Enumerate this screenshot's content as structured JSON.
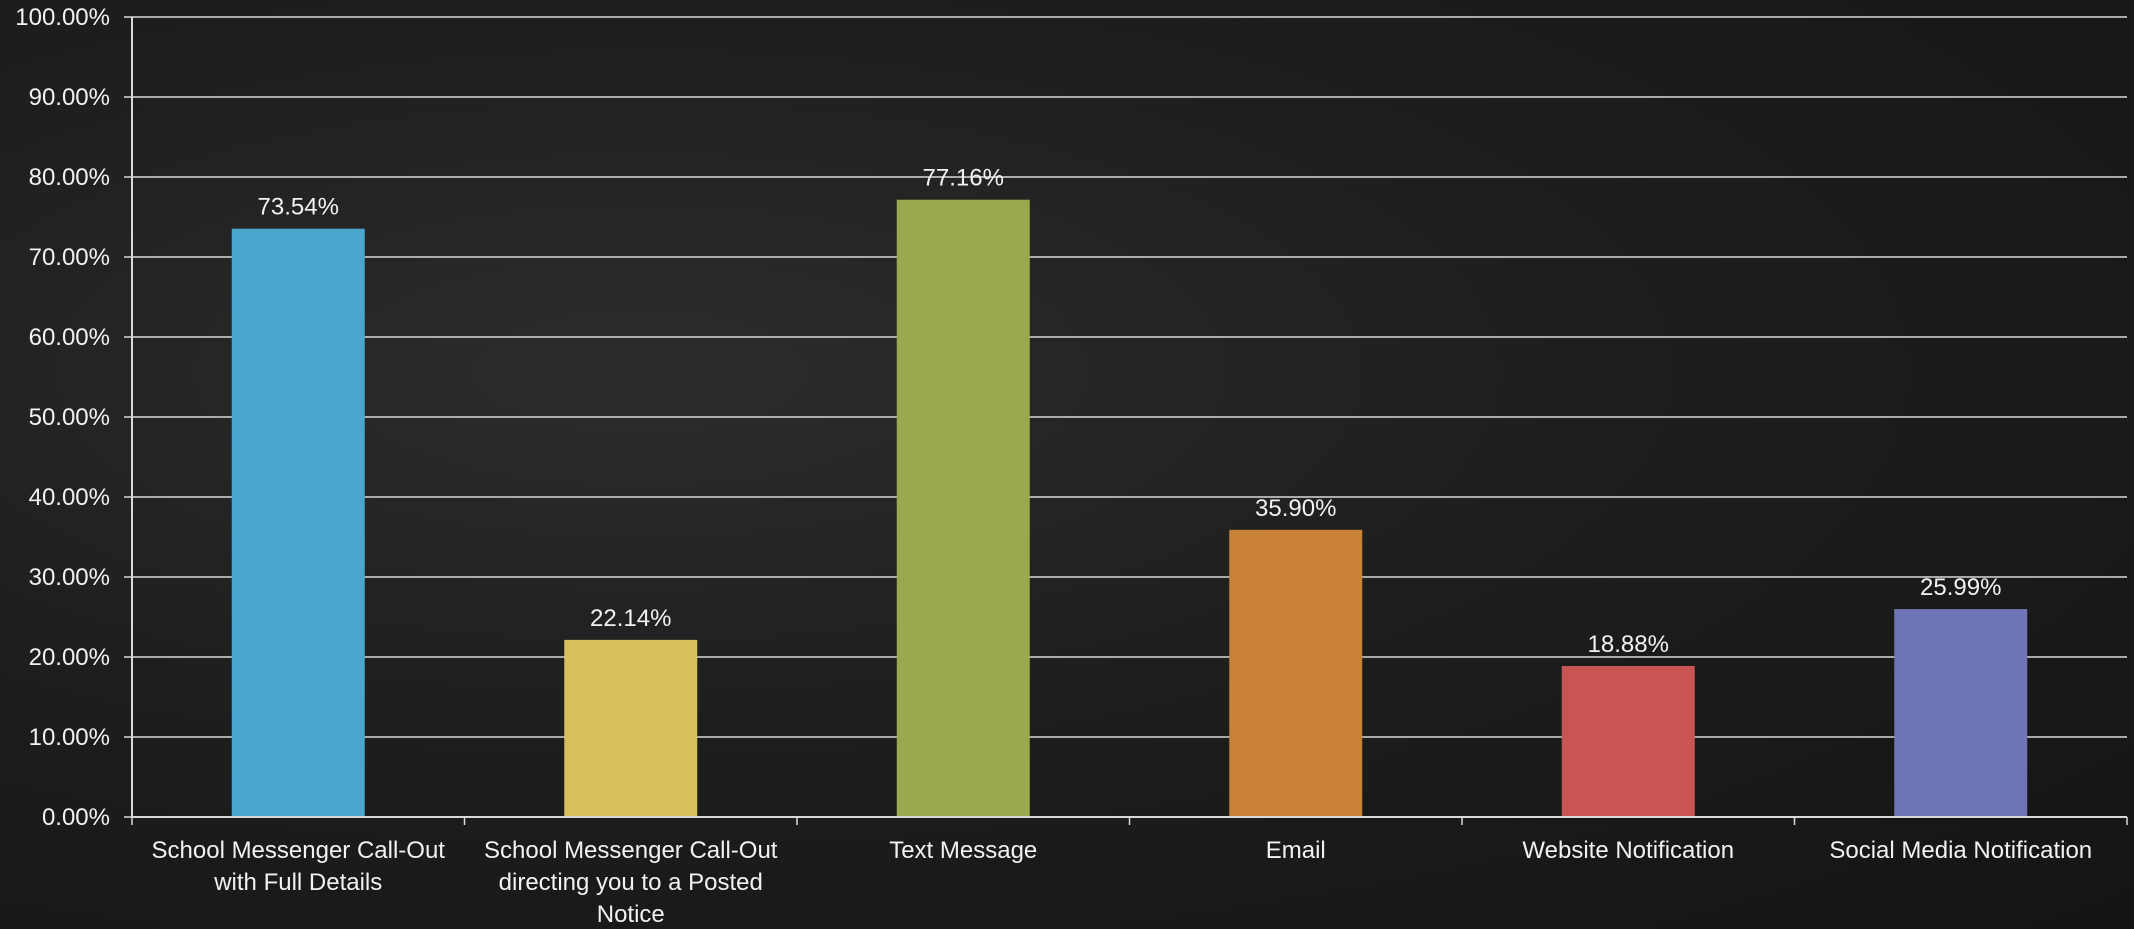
{
  "chart_data": {
    "type": "bar",
    "categories": [
      "School Messenger Call-Out with Full Details",
      "School Messenger Call-Out directing you to a Posted Notice",
      "Text Message",
      "Email",
      "Website Notification",
      "Social Media Notification"
    ],
    "category_lines": [
      [
        "School Messenger Call-Out",
        "with Full Details"
      ],
      [
        "School Messenger Call-Out",
        "directing you to a Posted",
        "Notice"
      ],
      [
        "Text Message"
      ],
      [
        "Email"
      ],
      [
        "Website Notification"
      ],
      [
        "Social Media Notification"
      ]
    ],
    "values": [
      73.54,
      22.14,
      77.16,
      35.9,
      18.88,
      25.99
    ],
    "data_labels": [
      "73.54%",
      "22.14%",
      "77.16%",
      "35.90%",
      "18.88%",
      "25.99%"
    ],
    "colors": [
      "#4aa6cc",
      "#d6bf5c",
      "#9aa84e",
      "#c98138",
      "#c85454",
      "#6f75b4"
    ],
    "ylim": [
      0,
      100
    ],
    "y_ticks": [
      0,
      10,
      20,
      30,
      40,
      50,
      60,
      70,
      80,
      90,
      100
    ],
    "y_tick_labels": [
      "0.00%",
      "10.00%",
      "20.00%",
      "30.00%",
      "40.00%",
      "50.00%",
      "60.00%",
      "70.00%",
      "80.00%",
      "90.00%",
      "100.00%"
    ],
    "grid": true,
    "legend": "none",
    "title": "",
    "xlabel": "",
    "ylabel": ""
  }
}
